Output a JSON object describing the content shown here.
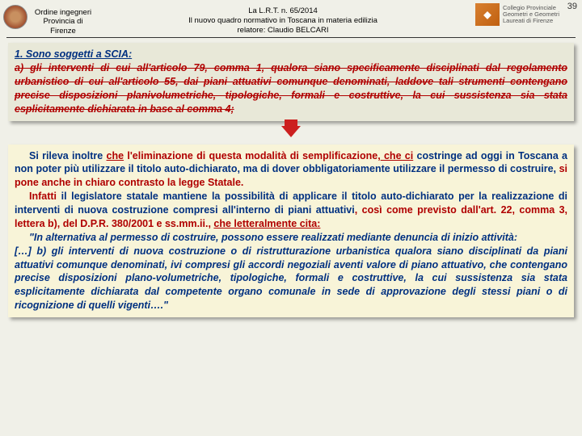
{
  "page_number": "39",
  "header": {
    "left_line1": "Ordine ingegneri",
    "left_line2": "Provincia di",
    "left_line3": "Firenze",
    "center_line1": "La L.R.T. n. 65/2014",
    "center_line2": "Il nuovo quadro normativo in Toscana in materia edilizia",
    "center_line3": "relatore: Claudio BELCARI",
    "badge_text": "Collegio Provinciale Geometri e Geometri Laureati di Firenze"
  },
  "box1": {
    "title": "1. Sono soggetti a SCIA:",
    "body": "a) gli interventi di cui all'articolo 79, comma 1, qualora siano specificamente disciplinati dal regolamento urbanistico di cui all'articolo 55, dai piani attuativi comunque denominati, laddove tali strumenti contengano precise disposizioni planivolumetriche, tipologiche, formali e costruttive, la cui sussistenza sia stata esplicitamente dichiarata in base al comma 4;"
  },
  "box2": {
    "p1a": "Si rileva inoltre ",
    "p1b": "che",
    "p1c": " l'eliminazione di questa modalità di semplificazione,",
    "p1d": " che ci",
    "p1e": " costringe ad oggi in Toscana a non poter più utilizzare il titolo auto-dichiarato, ma di dover obbligatoriamente utilizzare il permesso di costruire, ",
    "p1f": "si pone anche in chiaro contrasto la legge Statale.",
    "p2a": "Infatti",
    "p2b": " il legislatore statale mantiene la possibilità di applicare il titolo auto-dichiarato per la realizzazione di interventi di nuova costruzione compresi all'interno di piani attuativi",
    "p2c": ", così come previsto dall'art. 22, comma 3, lettera b), del D.P.R. 380/2001 e ss.mm.ii., ",
    "p2d": "che letteralmente cita:",
    "p3": "\"In alternativa al permesso di costruire, possono essere realizzati mediante denuncia di inizio attività:",
    "p4": "[…] b) gli interventi di nuova costruzione o di ristrutturazione urbanistica qualora siano disciplinati da piani attuativi comunque denominati, ivi compresi gli accordi negoziali aventi valore di piano attuativo, che contengano precise disposizioni plano-volumetriche, tipologiche, formali e costruttive, la cui sussistenza sia stata esplicitamente dichiarata dal competente organo comunale in sede di approvazione degli stessi piani o di ricognizione di quelli vigenti….\""
  }
}
